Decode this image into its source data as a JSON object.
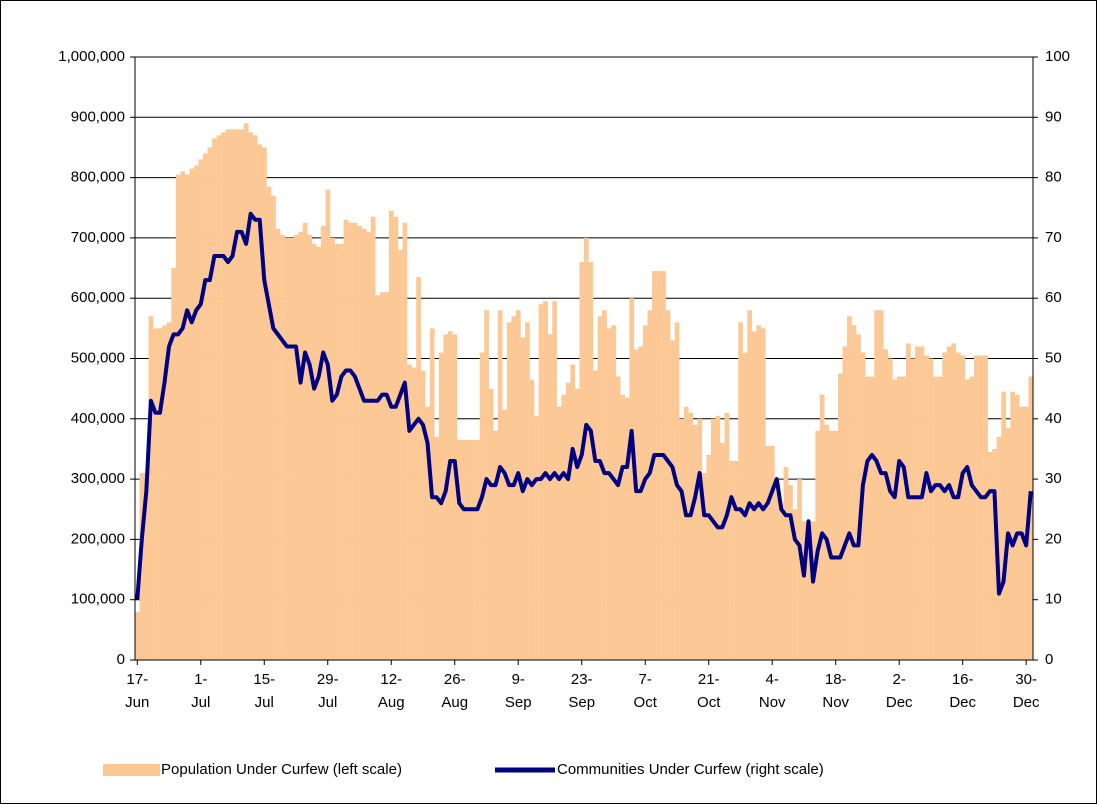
{
  "chart_data": {
    "type": "bar",
    "categories": [
      "17-Jun",
      null,
      null,
      null,
      null,
      null,
      null,
      null,
      null,
      null,
      null,
      null,
      null,
      null,
      "1-Jul",
      null,
      null,
      null,
      null,
      null,
      null,
      null,
      null,
      null,
      null,
      null,
      null,
      null,
      "15-Jul",
      null,
      null,
      null,
      null,
      null,
      null,
      null,
      null,
      null,
      null,
      null,
      null,
      null,
      "29-Jul",
      null,
      null,
      null,
      null,
      null,
      null,
      null,
      null,
      null,
      null,
      null,
      null,
      null,
      "12-Aug",
      null,
      null,
      null,
      null,
      null,
      null,
      null,
      null,
      null,
      null,
      null,
      null,
      null,
      "26-Aug",
      null,
      null,
      null,
      null,
      null,
      null,
      null,
      null,
      null,
      null,
      null,
      null,
      null,
      "9-Sep",
      null,
      null,
      null,
      null,
      null,
      null,
      null,
      null,
      null,
      null,
      null,
      null,
      null,
      "23-Sep",
      null,
      null,
      null,
      null,
      null,
      null,
      null,
      null,
      null,
      null,
      null,
      null,
      null,
      "7-Oct",
      null,
      null,
      null,
      null,
      null,
      null,
      null,
      null,
      null,
      null,
      null,
      null,
      null,
      "21-Oct",
      null,
      null,
      null,
      null,
      null,
      null,
      null,
      null,
      null,
      null,
      null,
      null,
      null,
      "4-Nov",
      null,
      null,
      null,
      null,
      null,
      null,
      null,
      null,
      null,
      null,
      null,
      null,
      null,
      "18-Nov",
      null,
      null,
      null,
      null,
      null,
      null,
      null,
      null,
      null,
      null,
      null,
      null,
      null,
      "2-Dec",
      null,
      null,
      null,
      null,
      null,
      null,
      null,
      null,
      null,
      null,
      null,
      null,
      null,
      "16-Dec",
      null,
      null,
      null,
      null,
      null,
      null,
      null,
      null,
      null,
      null,
      null,
      null,
      null,
      "30-Dec",
      null
    ],
    "series": [
      {
        "name": "Population Under Curfew (left scale)",
        "type": "bar",
        "color": "#fcc996",
        "values": [
          80000,
          310000,
          310000,
          570000,
          550000,
          550000,
          555000,
          560000,
          650000,
          805000,
          810000,
          805000,
          815000,
          820000,
          830000,
          840000,
          850000,
          865000,
          870000,
          875000,
          880000,
          880000,
          880000,
          880000,
          890000,
          875000,
          870000,
          855000,
          850000,
          785000,
          770000,
          715000,
          705000,
          700000,
          700000,
          705000,
          710000,
          725000,
          705000,
          690000,
          685000,
          720000,
          780000,
          700000,
          690000,
          690000,
          730000,
          725000,
          725000,
          720000,
          715000,
          710000,
          735000,
          605000,
          610000,
          610000,
          745000,
          735000,
          680000,
          725000,
          490000,
          485000,
          635000,
          480000,
          420000,
          550000,
          370000,
          510000,
          540000,
          545000,
          540000,
          365000,
          365000,
          365000,
          365000,
          365000,
          510000,
          580000,
          450000,
          380000,
          580000,
          415000,
          560000,
          570000,
          580000,
          535000,
          560000,
          465000,
          405000,
          590000,
          595000,
          540000,
          595000,
          420000,
          440000,
          460000,
          490000,
          450000,
          660000,
          700000,
          660000,
          480000,
          570000,
          580000,
          550000,
          555000,
          470000,
          440000,
          435000,
          600000,
          515000,
          520000,
          555000,
          580000,
          645000,
          645000,
          645000,
          580000,
          530000,
          560000,
          400000,
          420000,
          410000,
          390000,
          400000,
          310000,
          340000,
          400000,
          405000,
          360000,
          410000,
          330000,
          330000,
          560000,
          510000,
          580000,
          545000,
          555000,
          550000,
          355000,
          355000,
          300000,
          260000,
          320000,
          290000,
          250000,
          300000,
          230000,
          230000,
          230000,
          380000,
          440000,
          390000,
          380000,
          380000,
          475000,
          520000,
          570000,
          555000,
          540000,
          510000,
          470000,
          470000,
          580000,
          580000,
          515000,
          500000,
          465000,
          470000,
          470000,
          525000,
          500000,
          520000,
          520000,
          505000,
          500000,
          470000,
          470000,
          510000,
          520000,
          525000,
          510000,
          505000,
          465000,
          470000,
          505000,
          505000,
          505000,
          345000,
          350000,
          370000,
          445000,
          385000,
          445000,
          440000,
          420000,
          420000,
          470000
        ]
      },
      {
        "name": "Communities Under Curfew (right scale)",
        "type": "line",
        "axis": "y2",
        "color": "#000080",
        "values": [
          10,
          20,
          28,
          43,
          41,
          41,
          46,
          52,
          54,
          54,
          55,
          58,
          56,
          58,
          59,
          63,
          63,
          67,
          67,
          67,
          66,
          67,
          71,
          71,
          69,
          74,
          73,
          73,
          63,
          59,
          55,
          54,
          53,
          52,
          52,
          52,
          46,
          51,
          49,
          45,
          47,
          51,
          49,
          43,
          44,
          47,
          48,
          48,
          47,
          45,
          43,
          43,
          43,
          43,
          44,
          44,
          42,
          42,
          44,
          46,
          38,
          39,
          40,
          39,
          36,
          27,
          27,
          26,
          28,
          33,
          33,
          26,
          25,
          25,
          25,
          25,
          27,
          30,
          29,
          29,
          32,
          31,
          29,
          29,
          31,
          28,
          30,
          29,
          30,
          30,
          31,
          30,
          31,
          30,
          31,
          30,
          35,
          32,
          34,
          39,
          38,
          33,
          33,
          31,
          31,
          30,
          29,
          32,
          32,
          38,
          28,
          28,
          30,
          31,
          34,
          34,
          34,
          33,
          32,
          29,
          28,
          24,
          24,
          27,
          31,
          24,
          24,
          23,
          22,
          22,
          24,
          27,
          25,
          25,
          24,
          26,
          25,
          26,
          25,
          26,
          28,
          30,
          25,
          24,
          24,
          20,
          19,
          14,
          23,
          13,
          18,
          21,
          20,
          17,
          17,
          17,
          19,
          21,
          19,
          19,
          29,
          33,
          34,
          33,
          31,
          31,
          28,
          27,
          33,
          32,
          27,
          27,
          27,
          27,
          31,
          28,
          29,
          29,
          28,
          29,
          27,
          27,
          31,
          32,
          29,
          28,
          27,
          27,
          28,
          28,
          11,
          13,
          21,
          19,
          21,
          21,
          19,
          28
        ]
      }
    ],
    "ylim": [
      0,
      1000000
    ],
    "yticks": [
      0,
      {
        "value": 100000,
        "label": "100,000"
      },
      {
        "value": 200000,
        "label": "200,000"
      },
      {
        "value": 300000,
        "label": "300,000"
      },
      {
        "value": 400000,
        "label": "400,000"
      },
      {
        "value": 500000,
        "label": "500,000"
      },
      {
        "value": 600000,
        "label": "600,000"
      },
      {
        "value": 700000,
        "label": "700,000"
      },
      {
        "value": 800000,
        "label": "800,000"
      },
      {
        "value": 900000,
        "label": "900,000"
      },
      {
        "value": 1000000,
        "label": "1,000,000"
      }
    ],
    "y2lim": [
      0,
      100
    ],
    "y2ticks": [
      0,
      10,
      20,
      30,
      40,
      50,
      60,
      70,
      80,
      90,
      100
    ],
    "grid": true,
    "legend": "bottom"
  }
}
